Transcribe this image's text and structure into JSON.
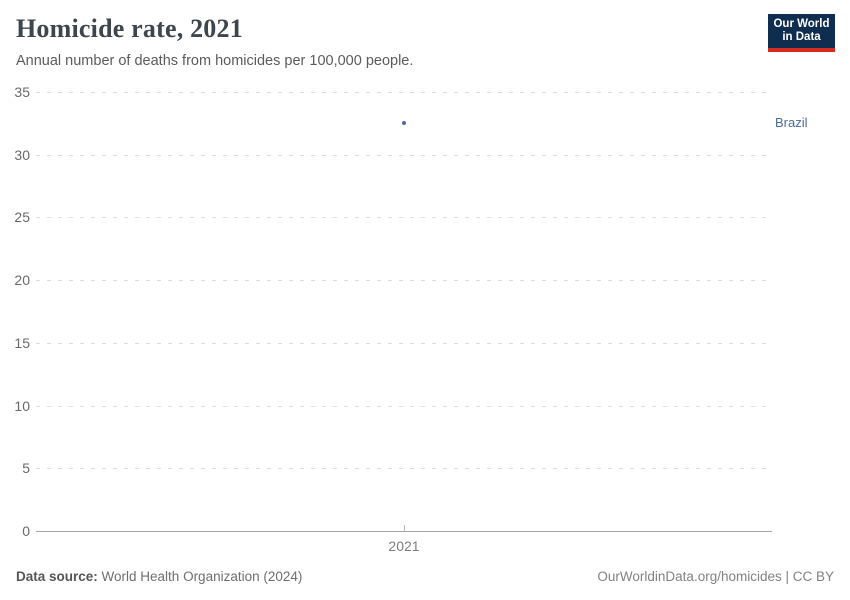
{
  "header": {
    "title": "Homicide rate, 2021",
    "subtitle": "Annual number of deaths from homicides per 100,000 people.",
    "logo": {
      "line1": "Our World",
      "line2": "in Data"
    }
  },
  "chart_data": {
    "type": "scatter",
    "title": "Homicide rate, 2021",
    "x": [
      2021
    ],
    "x_tick_labels": [
      "2021"
    ],
    "series": [
      {
        "name": "Brazil",
        "values": [
          32.5
        ]
      }
    ],
    "xlabel": "",
    "ylabel": "",
    "ylim": [
      0,
      35
    ],
    "y_ticks": [
      0,
      5,
      10,
      15,
      20,
      25,
      30,
      35
    ],
    "grid": "horizontal-dashed",
    "legend_position": "right-entity-label"
  },
  "footer": {
    "source_label": "Data source:",
    "source_value": " World Health Organization (2024)",
    "credit": "OurWorldinData.org/homicides | CC BY"
  },
  "colors": {
    "accent_blue": "#4c6a9c",
    "logo_background": "#0f2d4e",
    "logo_red": "#d42b21",
    "title_text": "#3d454d",
    "gridline": "#dcdce0",
    "axis_line": "#a6a6a6"
  }
}
